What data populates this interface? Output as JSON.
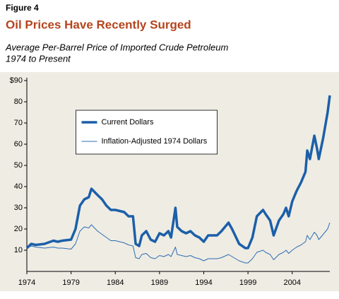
{
  "chart_data": {
    "type": "line",
    "figure_label": "Figure 4",
    "title": "Oil Prices Have Recently Surged",
    "subtitle": [
      "Average Per-Barrel Price of Imported Crude Petroleum",
      "1974 to Present"
    ],
    "x": [
      1974,
      1974.5,
      1975,
      1976,
      1977,
      1977.5,
      1978,
      1979,
      1979.5,
      1980,
      1980.5,
      1981,
      1981.3,
      1982,
      1982.5,
      1983,
      1983.5,
      1984,
      1984.5,
      1985,
      1985.5,
      1986,
      1986.3,
      1986.7,
      1987,
      1987.5,
      1988,
      1988.5,
      1989,
      1989.5,
      1990,
      1990.3,
      1990.8,
      1991,
      1991.5,
      1992,
      1992.5,
      1993,
      1993.5,
      1994,
      1994.5,
      1995,
      1995.5,
      1996,
      1996.8,
      1997.2,
      1998,
      1998.7,
      1999,
      1999.5,
      2000,
      2000.7,
      2001,
      2001.5,
      2001.9,
      2002.5,
      2003,
      2003.3,
      2003.6,
      2004,
      2004.5,
      2005,
      2005.5,
      2005.7,
      2006,
      2006.5,
      2006.8,
      2007,
      2007.5,
      2008,
      2008.25
    ],
    "series": [
      {
        "name": "Current Dollars",
        "color": "#1b5fa9",
        "width": 3.5,
        "values": [
          11,
          13,
          12.5,
          13,
          14.5,
          14,
          14.5,
          15,
          20,
          31,
          34,
          35,
          39,
          36,
          34,
          31,
          29,
          29,
          28.5,
          28,
          26,
          26,
          13,
          12,
          17,
          19,
          15,
          14,
          18,
          17,
          19,
          16,
          30,
          21,
          19,
          18,
          19,
          17,
          16,
          14,
          17,
          17,
          17,
          19,
          23,
          20,
          13,
          11,
          11,
          16,
          26,
          29,
          27,
          24,
          17,
          24,
          27,
          30,
          26,
          33,
          38,
          42,
          47,
          57,
          53,
          64,
          58,
          53,
          63,
          75,
          83
        ]
      },
      {
        "name": "Inflation-Adjusted 1974 Dollars",
        "color": "#2e6db5",
        "width": 1,
        "values": [
          11,
          12,
          11.5,
          11,
          11.5,
          11,
          11,
          10.5,
          13,
          19,
          21,
          20.5,
          22,
          19,
          17.5,
          16,
          14.5,
          14.5,
          14,
          13.5,
          12.5,
          12,
          6.5,
          6,
          8,
          8.5,
          6.5,
          6,
          7.5,
          7,
          8,
          7,
          11.5,
          8,
          7.5,
          7,
          7.5,
          6.5,
          6,
          5,
          6,
          6,
          6,
          6.5,
          8,
          7,
          5,
          4,
          4,
          6,
          9,
          10,
          9,
          8,
          5.5,
          8,
          9,
          10,
          8.5,
          10,
          11.5,
          12.5,
          14,
          17,
          15,
          18.5,
          17,
          15,
          17.5,
          20,
          23
        ]
      }
    ],
    "xlim": [
      1974,
      2008.25
    ],
    "xticks": [
      1974,
      1979,
      1984,
      1989,
      1994,
      1999,
      2004
    ],
    "ylim": [
      0,
      90
    ],
    "yticks": [
      10,
      20,
      30,
      40,
      50,
      60,
      70,
      80,
      {
        "value": 90,
        "label": "$90"
      }
    ],
    "grid": false,
    "legend": "upper-center"
  }
}
